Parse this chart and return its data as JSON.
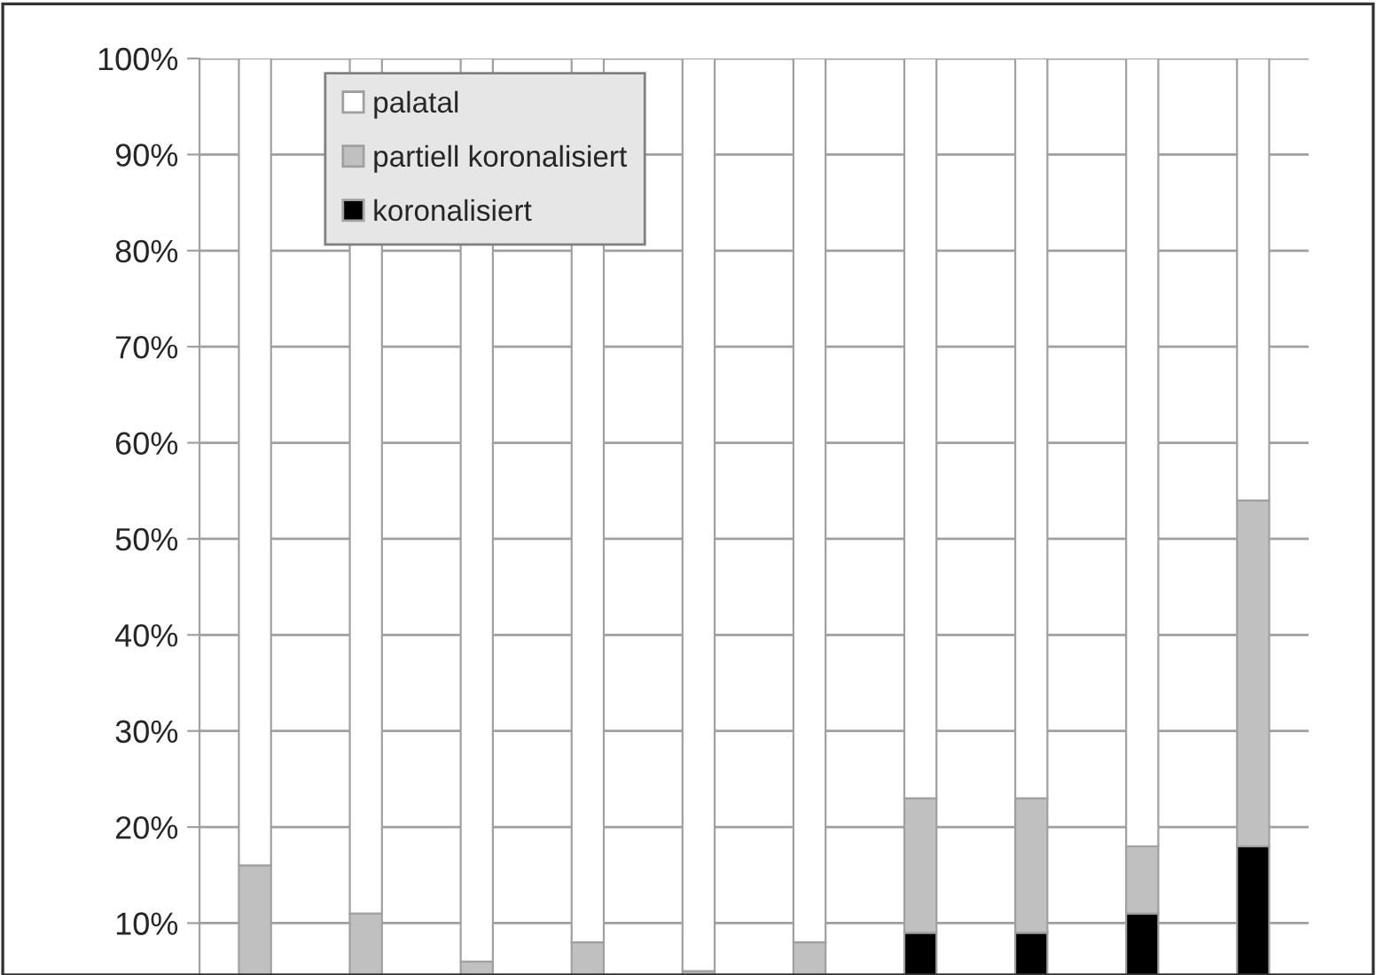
{
  "chart_data": {
    "type": "bar",
    "stacked": true,
    "categories": [
      null,
      null,
      null,
      null,
      null,
      null,
      null,
      null,
      null,
      null
    ],
    "series": [
      {
        "name": "koronalisiert",
        "color": "#000000",
        "values": [
          null,
          null,
          null,
          null,
          null,
          null,
          9,
          9,
          11,
          18
        ]
      },
      {
        "name": "partiell koronalisiert",
        "color": "#c0c0c0",
        "values": [
          16,
          11,
          6,
          8,
          5,
          8,
          14,
          14,
          7,
          36
        ]
      },
      {
        "name": "palatal",
        "color": "#ffffff",
        "values": [
          84,
          89,
          94,
          92,
          95,
          92,
          77,
          77,
          82,
          46
        ]
      }
    ],
    "ylim": [
      4.6,
      100
    ],
    "yticks": [
      {
        "value": 10,
        "label": "10%"
      },
      {
        "value": 20,
        "label": "20%"
      },
      {
        "value": 30,
        "label": "30%"
      },
      {
        "value": 40,
        "label": "40%"
      },
      {
        "value": 50,
        "label": "50%"
      },
      {
        "value": 60,
        "label": "60%"
      },
      {
        "value": 70,
        "label": "70%"
      },
      {
        "value": 80,
        "label": "80%"
      },
      {
        "value": 90,
        "label": "90%"
      },
      {
        "value": 100,
        "label": "100%"
      }
    ],
    "grid": "y",
    "legend": "top left"
  }
}
